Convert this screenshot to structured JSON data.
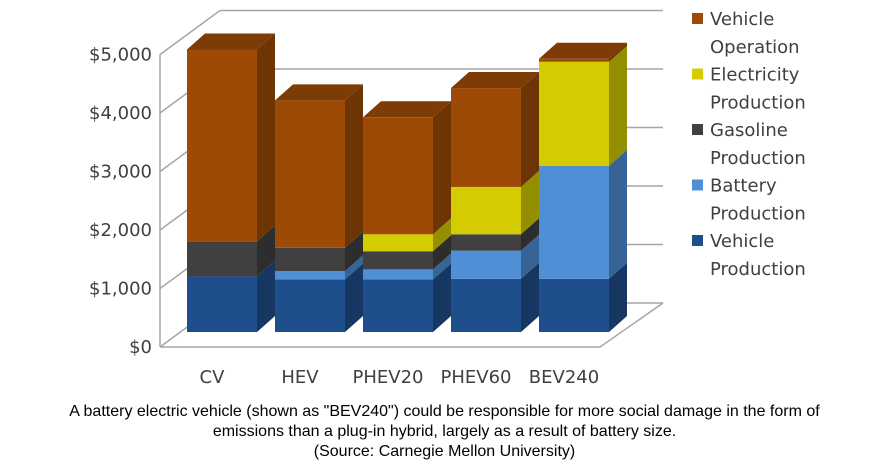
{
  "chart_data": {
    "type": "bar",
    "stacked": true,
    "style": "3d",
    "title": "",
    "xlabel": "",
    "ylabel": "",
    "ylim": [
      0,
      5000
    ],
    "yticks": [
      "$0",
      "$1,000",
      "$2,000",
      "$3,000",
      "$4,000",
      "$5,000"
    ],
    "categories": [
      "CV",
      "HEV",
      "PHEV20",
      "PHEV60",
      "BEV240"
    ],
    "grid": true,
    "legend_position": "right",
    "series": [
      {
        "name": "Vehicle Production",
        "color": "#1f4e8c",
        "values": [
          950,
          900,
          900,
          910,
          910
        ]
      },
      {
        "name": "Battery Production",
        "color": "#4f8fd6",
        "values": [
          0,
          140,
          170,
          480,
          1930
        ]
      },
      {
        "name": "Gasoline Production",
        "color": "#404040",
        "values": [
          600,
          400,
          310,
          280,
          0
        ]
      },
      {
        "name": "Electricity Production",
        "color": "#d4cc00",
        "values": [
          0,
          0,
          290,
          810,
          1780
        ]
      },
      {
        "name": "Vehicle Operation",
        "color": "#9c4a06",
        "values": [
          3280,
          2520,
          2000,
          1690,
          50
        ]
      }
    ]
  },
  "legend": [
    {
      "line1": "Vehicle",
      "line2": "Operation",
      "color": "#9c4a06"
    },
    {
      "line1": "Electricity",
      "line2": "Production",
      "color": "#d4cc00"
    },
    {
      "line1": "Gasoline",
      "line2": "Production",
      "color": "#404040"
    },
    {
      "line1": "Battery",
      "line2": "Production",
      "color": "#4f8fd6"
    },
    {
      "line1": "Vehicle",
      "line2": "Production",
      "color": "#1f4e8c"
    }
  ],
  "caption": {
    "line1": "A battery electric vehicle (shown as \"BEV240\") could be responsible for more social damage in the form of",
    "line2": "emissions than a plug-in hybrid, largely as a result of battery size.",
    "line3": "(Source: Carnegie Mellon University)"
  }
}
